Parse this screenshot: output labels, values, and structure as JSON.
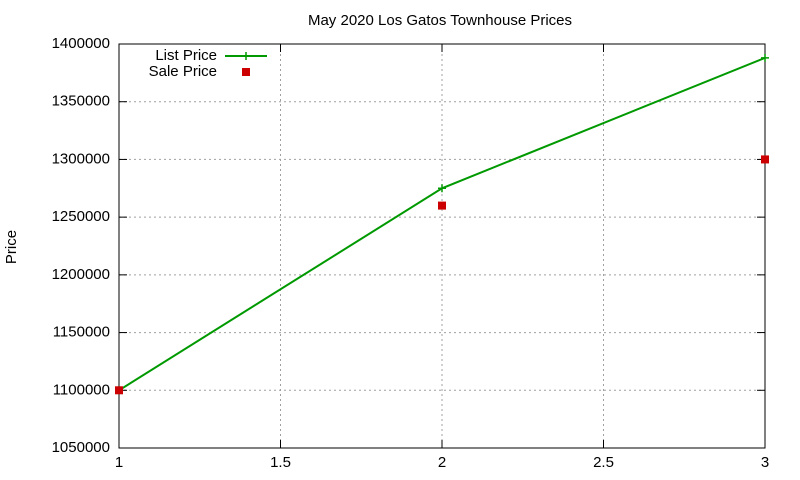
{
  "chart_data": {
    "type": "line",
    "title": "May 2020 Los Gatos Townhouse Prices",
    "y_label": "Price",
    "x": [
      1,
      2,
      3
    ],
    "series": [
      {
        "name": "List Price",
        "color": "#009900",
        "values": [
          1100000,
          1275000,
          1388000
        ],
        "mode": "lines+markers",
        "marker": "plus"
      },
      {
        "name": "Sale Price",
        "color": "#cc0000",
        "values": [
          1100000,
          1260000,
          1300000
        ],
        "mode": "markers",
        "marker": "square"
      }
    ],
    "xlim": [
      1,
      3
    ],
    "xticks": [
      1,
      1.5,
      2,
      2.5,
      3
    ],
    "ylim": [
      1050000,
      1400000
    ],
    "yticks": [
      1050000,
      1100000,
      1150000,
      1200000,
      1250000,
      1300000,
      1350000,
      1400000
    ],
    "grid": true,
    "legend": "top-left"
  }
}
